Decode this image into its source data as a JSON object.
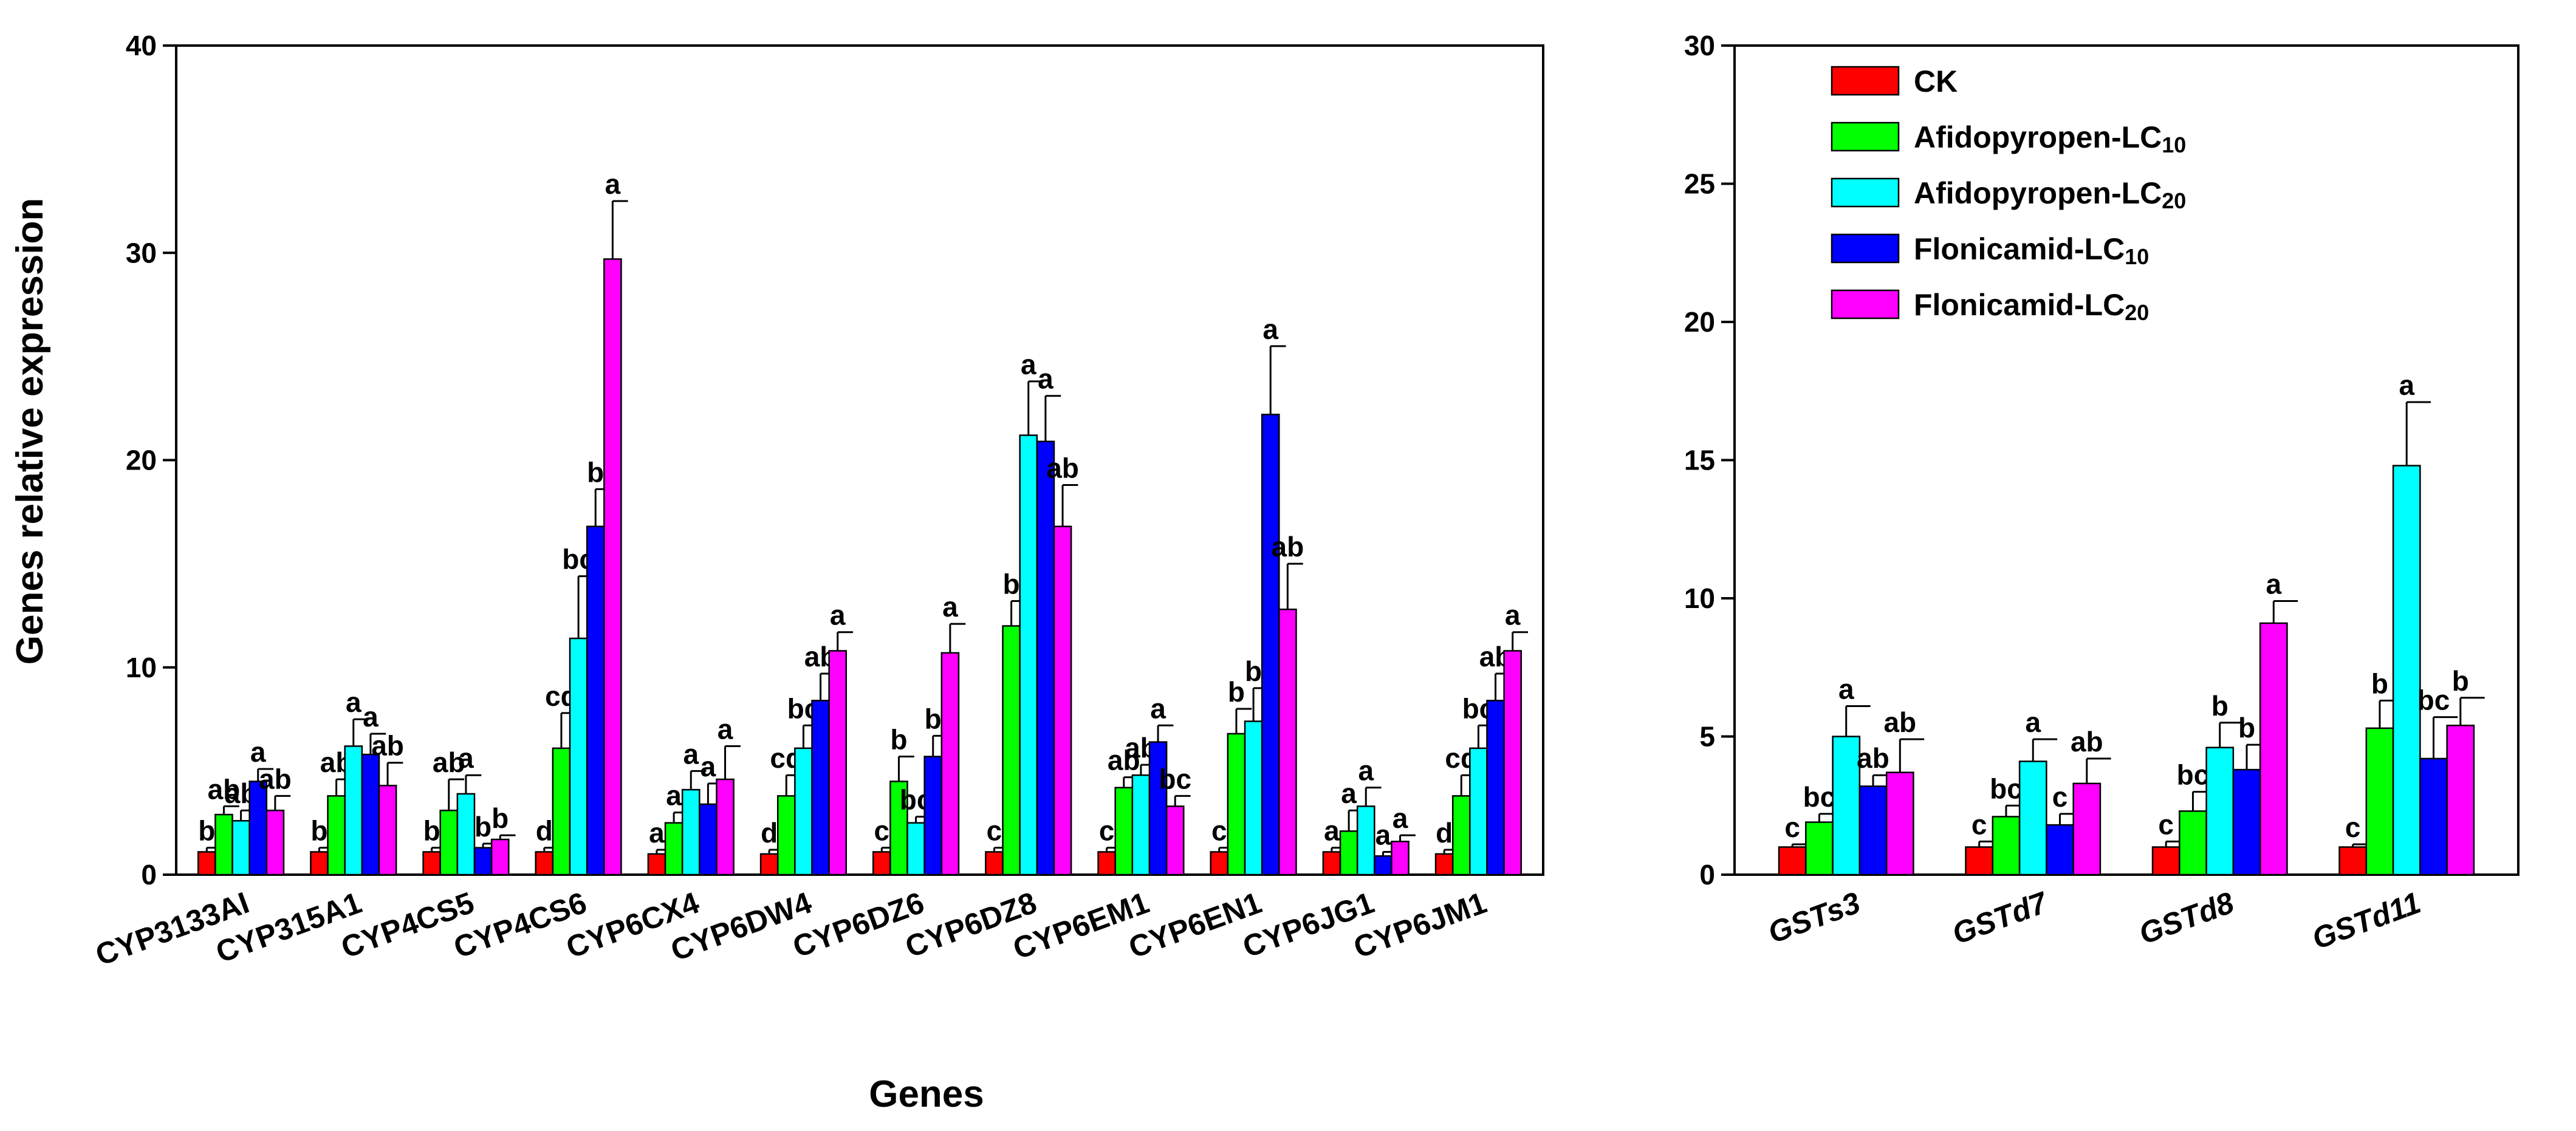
{
  "chart_data": [
    {
      "type": "bar",
      "title": "",
      "xlabel": "Genes",
      "ylabel": "Genes relative expression",
      "ylim": [
        0,
        40
      ],
      "yticks": [
        0,
        10,
        20,
        30,
        40
      ],
      "grid": false,
      "categories": [
        "CYP3133AI",
        "CYP315A1",
        "CYP4CS5",
        "CYP4CS6",
        "CYP6CX4",
        "CYP6DW4",
        "CYP6DZ6",
        "CYP6DZ8",
        "CYP6EM1",
        "CYP6EN1",
        "CYP6JG1",
        "CYP6JM1"
      ],
      "italic_categories": false,
      "series": [
        {
          "name": "CK",
          "color": "#ff0000",
          "values": [
            1.1,
            1.1,
            1.1,
            1.1,
            1.0,
            1.0,
            1.1,
            1.1,
            1.1,
            1.1,
            1.1,
            1.0
          ],
          "errors": [
            0.2,
            0.2,
            0.2,
            0.2,
            0.2,
            0.2,
            0.2,
            0.2,
            0.2,
            0.2,
            0.2,
            0.2
          ],
          "letters": [
            "b",
            "b",
            "b",
            "d",
            "a",
            "d",
            "c",
            "c",
            "c",
            "c",
            "a",
            "d"
          ]
        },
        {
          "name": "Afidopyropen-LC10",
          "color": "#00ff00",
          "values": [
            2.9,
            3.8,
            3.1,
            6.1,
            2.5,
            3.8,
            4.5,
            12.0,
            4.2,
            6.8,
            2.1,
            3.8
          ],
          "errors": [
            0.4,
            0.8,
            1.5,
            1.7,
            0.5,
            1.0,
            1.2,
            1.2,
            0.5,
            1.2,
            1.0,
            1.0
          ],
          "letters": [
            "ab",
            "ab",
            "ab",
            "cd",
            "a",
            "cd",
            "b",
            "b",
            "ab",
            "b",
            "a",
            "cd"
          ]
        },
        {
          "name": "Afidopyropen-LC20",
          "color": "#00ffff",
          "values": [
            2.6,
            6.2,
            3.9,
            11.4,
            4.1,
            6.1,
            2.5,
            21.2,
            4.8,
            7.4,
            3.3,
            6.1
          ],
          "errors": [
            0.5,
            1.3,
            0.9,
            3.0,
            0.9,
            1.1,
            0.3,
            2.6,
            0.5,
            1.6,
            0.9,
            1.1
          ],
          "letters": [
            "ab",
            "a",
            "a",
            "bc",
            "a",
            "bc",
            "bc",
            "a",
            "ab",
            "b",
            "a",
            "bc"
          ]
        },
        {
          "name": "Flonicamid-LC10",
          "color": "#0000ff",
          "values": [
            4.5,
            5.8,
            1.3,
            16.8,
            3.4,
            8.4,
            5.7,
            20.9,
            6.4,
            22.2,
            0.9,
            8.4
          ],
          "errors": [
            0.6,
            1.0,
            0.2,
            1.8,
            1.0,
            1.3,
            1.0,
            2.2,
            0.8,
            3.3,
            0.2,
            1.3
          ],
          "letters": [
            "a",
            "a",
            "b",
            "b",
            "a",
            "ab",
            "b",
            "a",
            "a",
            "a",
            "a",
            "ab"
          ]
        },
        {
          "name": "Flonicamid-LC20",
          "color": "#ff00ff",
          "values": [
            3.1,
            4.3,
            1.7,
            29.7,
            4.6,
            10.8,
            10.7,
            16.8,
            3.3,
            12.8,
            1.6,
            10.8
          ],
          "errors": [
            0.7,
            1.1,
            0.2,
            2.8,
            1.6,
            0.9,
            1.4,
            2.0,
            0.5,
            2.2,
            0.3,
            0.9
          ],
          "letters": [
            "ab",
            "ab",
            "b",
            "a",
            "a",
            "a",
            "a",
            "ab",
            "bc",
            "ab",
            "a",
            "a"
          ]
        }
      ]
    },
    {
      "type": "bar",
      "title": "",
      "xlabel": "",
      "ylabel": "",
      "ylim": [
        0,
        30
      ],
      "yticks": [
        0,
        5,
        10,
        15,
        20,
        25,
        30
      ],
      "grid": false,
      "legend_position": "top-left",
      "categories": [
        "GSTs3",
        "GSTd7",
        "GSTd8",
        "GSTd11"
      ],
      "italic_categories": true,
      "series": [
        {
          "name": "CK",
          "color": "#ff0000",
          "values": [
            1.0,
            1.0,
            1.0,
            1.0
          ],
          "errors": [
            0.1,
            0.2,
            0.2,
            0.1
          ],
          "letters": [
            "c",
            "c",
            "c",
            "c"
          ]
        },
        {
          "name": "Afidopyropen-LC10",
          "color": "#00ff00",
          "values": [
            1.9,
            2.1,
            2.3,
            5.3
          ],
          "errors": [
            0.3,
            0.4,
            0.7,
            1.0
          ],
          "letters": [
            "bc",
            "bc",
            "bc",
            "b"
          ]
        },
        {
          "name": "Afidopyropen-LC20",
          "color": "#00ffff",
          "values": [
            5.0,
            4.1,
            4.6,
            14.8
          ],
          "errors": [
            1.1,
            0.8,
            0.9,
            2.3
          ],
          "letters": [
            "a",
            "a",
            "b",
            "a"
          ]
        },
        {
          "name": "Flonicamid-LC10",
          "color": "#0000ff",
          "values": [
            3.2,
            1.8,
            3.8,
            4.2
          ],
          "errors": [
            0.4,
            0.4,
            0.9,
            1.5
          ],
          "letters": [
            "ab",
            "c",
            "b",
            "bc"
          ]
        },
        {
          "name": "Flonicamid-LC20",
          "color": "#ff00ff",
          "values": [
            3.7,
            3.3,
            9.1,
            5.4
          ],
          "errors": [
            1.2,
            0.9,
            0.8,
            1.0
          ],
          "letters": [
            "ab",
            "ab",
            "a",
            "b"
          ]
        }
      ]
    }
  ],
  "legend": {
    "items": [
      {
        "label": "CK",
        "subscript": "",
        "color": "#ff0000"
      },
      {
        "label": "Afidopyropen-LC",
        "subscript": "10",
        "color": "#00ff00"
      },
      {
        "label": "Afidopyropen-LC",
        "subscript": "20",
        "color": "#00ffff"
      },
      {
        "label": "Flonicamid-LC",
        "subscript": "10",
        "color": "#0000ff"
      },
      {
        "label": "Flonicamid-LC",
        "subscript": "20",
        "color": "#ff00ff"
      }
    ]
  }
}
